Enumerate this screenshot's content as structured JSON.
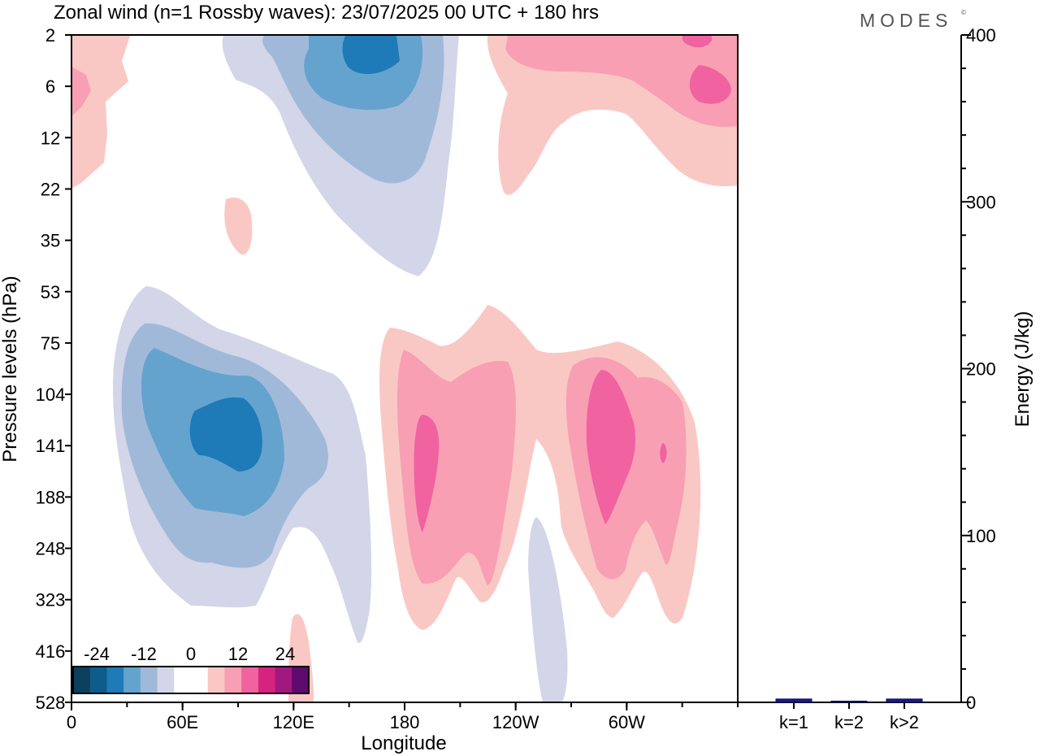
{
  "brand": "MODES",
  "brand_mark": "©",
  "chart_data": [
    {
      "type": "heatmap",
      "title": "Zonal wind (n=1 Rossby waves):  23/07/2025  00 UTC  + 180 hrs",
      "xlabel": "Longitude",
      "ylabel": "Pressure levels (hPa)",
      "x_tick_labels": [
        "0",
        "60E",
        "120E",
        "180",
        "120W",
        "60W"
      ],
      "x_tick_degrees": [
        0,
        60,
        120,
        180,
        240,
        300
      ],
      "x_range_degrees": [
        0,
        360
      ],
      "y_tick_labels": [
        "2",
        "6",
        "12",
        "22",
        "35",
        "53",
        "75",
        "104",
        "141",
        "188",
        "248",
        "323",
        "416",
        "528"
      ],
      "colorbar": {
        "tick_labels": [
          "-24",
          "-12",
          "0",
          "12",
          "24"
        ],
        "tick_values": [
          -24,
          -12,
          0,
          12,
          24
        ],
        "range": [
          -30,
          30
        ],
        "colors": [
          "#0b3f5e",
          "#0e5c8c",
          "#1f7ab8",
          "#64a3cd",
          "#a1b9d9",
          "#d3d5e8",
          "#ffffff",
          "#ffffff",
          "#fac8c4",
          "#f89fb4",
          "#f062a0",
          "#d6237f",
          "#a1197e",
          "#5e0a6e"
        ]
      },
      "features": [
        {
          "sign": "negative",
          "center_lon_deg": 80,
          "center_level": "141",
          "peak": -21
        },
        {
          "sign": "negative",
          "center_lon_deg": 162,
          "center_level": "2",
          "peak": -21
        },
        {
          "sign": "positive",
          "center_lon_deg": 195,
          "center_level": "141",
          "peak": 15
        },
        {
          "sign": "positive",
          "center_lon_deg": 290,
          "center_level": "141",
          "peak": 15
        },
        {
          "sign": "positive",
          "center_lon_deg": 335,
          "center_level": "2",
          "peak": 13
        }
      ]
    },
    {
      "type": "bar",
      "ylabel": "Energy (J/kg)",
      "categories": [
        "k=1",
        "k=2",
        "k>2"
      ],
      "values": [
        2,
        0.5,
        2
      ],
      "ylim": [
        0,
        400
      ],
      "y_tick_labels": [
        "0",
        "100",
        "200",
        "300",
        "400"
      ],
      "y_tick_values": [
        0,
        100,
        200,
        300,
        400
      ],
      "color": "#1a1a8c"
    }
  ]
}
